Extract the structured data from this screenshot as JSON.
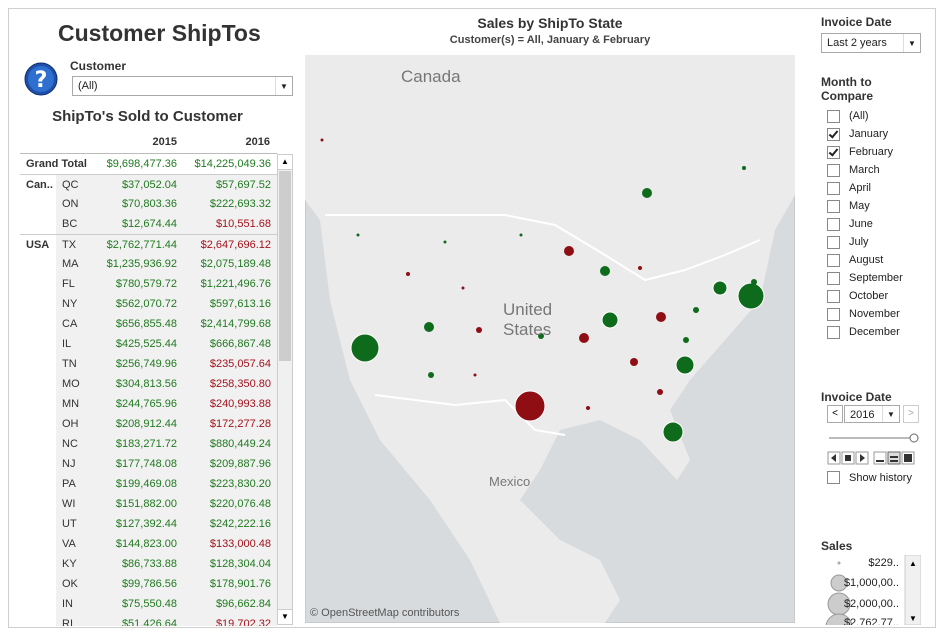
{
  "header": {
    "title": "Customer ShipTos"
  },
  "customer_filter": {
    "label": "Customer",
    "value": "(All)"
  },
  "table": {
    "title": "ShipTo's Sold to Customer",
    "columns": [
      "2015",
      "2016"
    ],
    "grand_total": {
      "label": "Grand Total",
      "values": [
        "$9,698,477.36",
        "$14,225,049.36"
      ]
    },
    "groups": [
      {
        "name": "Can..",
        "rows": [
          [
            "QC",
            "$37,052.04",
            "$57,697.52"
          ],
          [
            "ON",
            "$70,803.36",
            "$222,693.32"
          ],
          [
            "BC",
            "$12,674.44",
            "$10,551.68"
          ]
        ]
      },
      {
        "name": "USA",
        "rows": [
          [
            "TX",
            "$2,762,771.44",
            "$2,647,696.12"
          ],
          [
            "MA",
            "$1,235,936.92",
            "$2,075,189.48"
          ],
          [
            "FL",
            "$780,579.72",
            "$1,221,496.76"
          ],
          [
            "NY",
            "$562,070.72",
            "$597,613.16"
          ],
          [
            "CA",
            "$656,855.48",
            "$2,414,799.68"
          ],
          [
            "IL",
            "$425,525.44",
            "$666,867.48"
          ],
          [
            "TN",
            "$256,749.96",
            "$235,057.64"
          ],
          [
            "MO",
            "$304,813.56",
            "$258,350.80"
          ],
          [
            "MN",
            "$244,765.96",
            "$240,993.88"
          ],
          [
            "OH",
            "$208,912.44",
            "$172,277.28"
          ],
          [
            "NC",
            "$183,271.72",
            "$880,449.24"
          ],
          [
            "NJ",
            "$177,748.08",
            "$209,887.96"
          ],
          [
            "PA",
            "$199,469.08",
            "$223,830.20"
          ],
          [
            "WI",
            "$151,882.00",
            "$220,076.48"
          ],
          [
            "UT",
            "$127,392.44",
            "$242,222.16"
          ],
          [
            "VA",
            "$144,823.00",
            "$133,000.48"
          ],
          [
            "KY",
            "$86,733.88",
            "$128,304.04"
          ],
          [
            "OK",
            "$99,786.56",
            "$178,901.76"
          ],
          [
            "IN",
            "$75,550.48",
            "$96,662.84"
          ],
          [
            "RI",
            "$51,426.64",
            "$19,702.32"
          ]
        ]
      }
    ]
  },
  "map": {
    "title": "Sales by ShipTo State",
    "subtitle": "Customer(s) = All, January & February",
    "labels": [
      "Canada",
      "United States",
      "Mexico"
    ],
    "attribution": "© OpenStreetMap contributors"
  },
  "invoice_date_filter": {
    "label": "Invoice Date",
    "value": "Last 2 years"
  },
  "month_filter": {
    "label": "Month to Compare",
    "options": [
      {
        "label": "(All)",
        "checked": false
      },
      {
        "label": "January",
        "checked": true
      },
      {
        "label": "February",
        "checked": true
      },
      {
        "label": "March",
        "checked": false
      },
      {
        "label": "April",
        "checked": false
      },
      {
        "label": "May",
        "checked": false
      },
      {
        "label": "June",
        "checked": false
      },
      {
        "label": "July",
        "checked": false
      },
      {
        "label": "August",
        "checked": false
      },
      {
        "label": "September",
        "checked": false
      },
      {
        "label": "October",
        "checked": false
      },
      {
        "label": "November",
        "checked": false
      },
      {
        "label": "December",
        "checked": false
      }
    ]
  },
  "invoice_date_player": {
    "label": "Invoice Date",
    "value": "2016",
    "show_history": "Show history"
  },
  "size_legend": {
    "title": "Sales",
    "entries": [
      "$229..",
      "$1,000,00..",
      "$2,000,00..",
      "$2,762,77.."
    ]
  }
}
